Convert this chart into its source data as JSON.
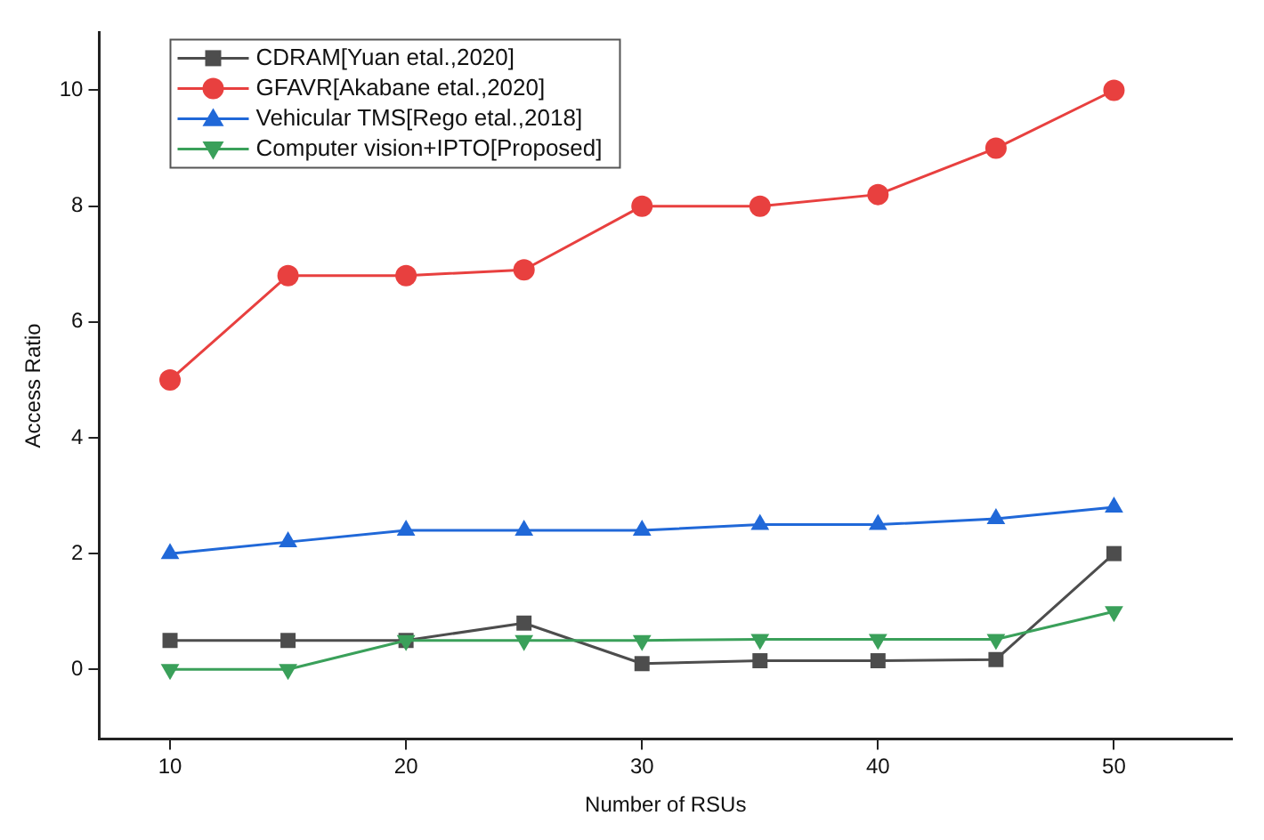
{
  "chart_data": {
    "type": "line",
    "xlabel": "Number of RSUs",
    "ylabel": "Access Ratio",
    "x": [
      10,
      15,
      20,
      25,
      30,
      35,
      40,
      45,
      50
    ],
    "series": [
      {
        "name": "CDRAM[Yuan etal.,2020]",
        "color": "#4d4d4d",
        "marker": "square",
        "values": [
          0.5,
          0.5,
          0.5,
          0.8,
          0.1,
          0.15,
          0.15,
          0.17,
          2
        ]
      },
      {
        "name": "GFAVR[Akabane etal.,2020]",
        "color": "#e8403f",
        "marker": "circle",
        "values": [
          5,
          6.8,
          6.8,
          6.9,
          8,
          8,
          8.2,
          9,
          10
        ]
      },
      {
        "name": "Vehicular TMS[Rego etal.,2018]",
        "color": "#2068d8",
        "marker": "triangle",
        "values": [
          2,
          2.2,
          2.4,
          2.4,
          2.4,
          2.5,
          2.5,
          2.6,
          2.8
        ]
      },
      {
        "name": "Computer vision+IPTO[Proposed]",
        "color": "#3aa05a",
        "marker": "triangle-down",
        "values": [
          0,
          0,
          0.5,
          0.5,
          0.5,
          0.52,
          0.52,
          0.52,
          1
        ]
      }
    ],
    "xlim": [
      7,
      55
    ],
    "xticks": [
      10,
      20,
      30,
      40,
      50
    ],
    "ylim": [
      -1.2,
      11
    ],
    "yticks": [
      0,
      2,
      4,
      6,
      8,
      10
    ],
    "grid": false,
    "legend": "top left",
    "line_style": "solid"
  }
}
